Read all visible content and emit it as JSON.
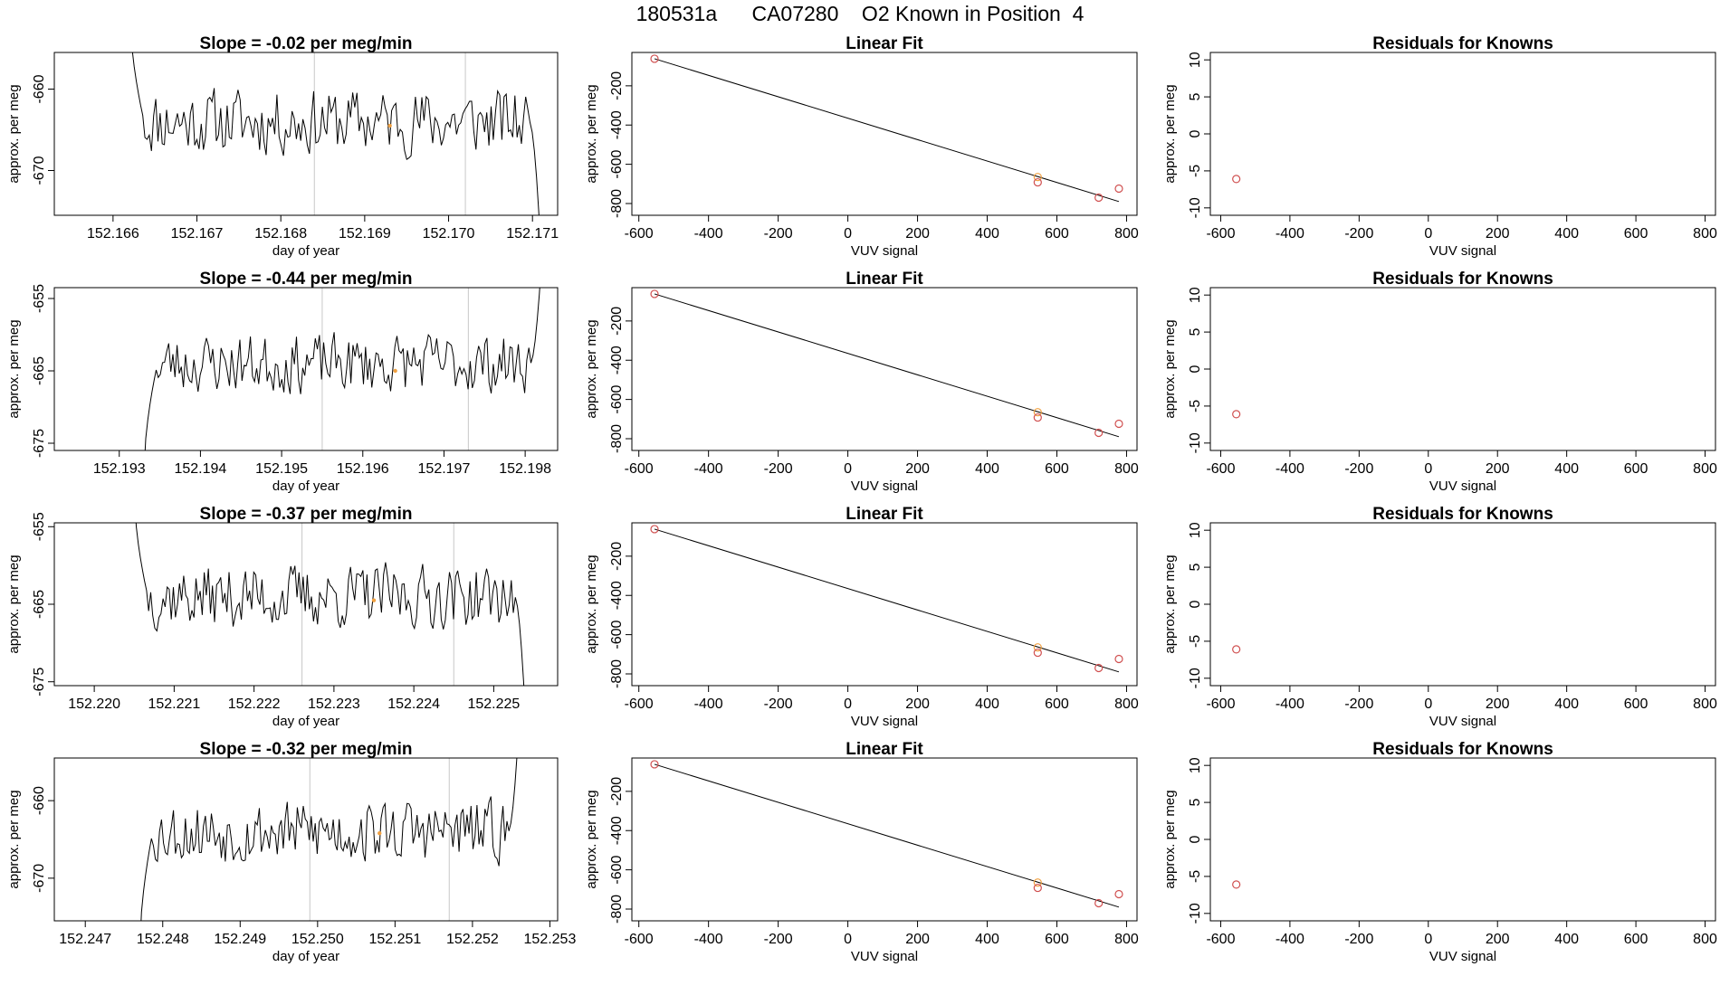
{
  "header": {
    "title": "180531a      CA07280    O2 Known in Position  4"
  },
  "chart_data": [
    {
      "type": "line",
      "title": "Slope =  -0.02  per meg/min",
      "xlabel": "day of year",
      "ylabel": "approx. per meg",
      "xlim": [
        152.1653,
        152.1713
      ],
      "ylim": [
        -675.5,
        -655.5
      ],
      "xticks": [
        152.166,
        152.167,
        152.168,
        152.169,
        152.17,
        152.171
      ],
      "xtick_labels": [
        "152.166",
        "152.167",
        "152.168",
        "152.169",
        "152.170",
        "152.171"
      ],
      "yticks": [
        -660,
        -670
      ],
      "ytick_labels": [
        "-660",
        "-670"
      ],
      "vlines": [
        152.1684,
        152.1702
      ],
      "marker": {
        "x": 152.1693,
        "y": -664.5
      },
      "start": 152.1662,
      "end": 152.1711,
      "base": -664,
      "seed": 11,
      "start_y": -650,
      "end_y": -680
    },
    {
      "type": "scatter",
      "title": "Linear Fit",
      "xlabel": "VUV signal",
      "ylabel": "approx. per meg",
      "xlim": [
        -620,
        830
      ],
      "ylim": [
        -860,
        -30
      ],
      "xticks": [
        -600,
        -400,
        -200,
        0,
        200,
        400,
        600,
        800
      ],
      "xtick_labels": [
        "-600",
        "-400",
        "-200",
        "0",
        "200",
        "400",
        "600",
        "800"
      ],
      "yticks": [
        -200,
        -400,
        -600,
        -800
      ],
      "ytick_labels": [
        "-200",
        "-400",
        "-600",
        "-800"
      ],
      "points": [
        [
          -555,
          -62
        ],
        [
          545,
          -665
        ],
        [
          545,
          -692
        ],
        [
          720,
          -770
        ],
        [
          778,
          -724
        ]
      ],
      "point_colors": [
        "#d05050",
        "#f0a040",
        "#d05050",
        "#d05050",
        "#d05050"
      ],
      "fit": [
        [
          -555,
          -62
        ],
        [
          778,
          -790
        ]
      ]
    },
    {
      "type": "scatter",
      "title": "Residuals for Knowns",
      "xlabel": "VUV signal",
      "ylabel": "approx. per meg",
      "xlim": [
        -630,
        830
      ],
      "ylim": [
        -11,
        11
      ],
      "xticks": [
        -600,
        -400,
        -200,
        0,
        200,
        400,
        600,
        800
      ],
      "xtick_labels": [
        "-600",
        "-400",
        "-200",
        "0",
        "200",
        "400",
        "600",
        "800"
      ],
      "yticks": [
        10,
        5,
        0,
        -5,
        -10
      ],
      "ytick_labels": [
        "10",
        "5",
        "0",
        "-5",
        "-10"
      ],
      "points": [
        [
          -555,
          -6.1
        ]
      ],
      "point_colors": [
        "#d05050"
      ]
    },
    {
      "type": "line",
      "title": "Slope =  -0.44  per meg/min",
      "xlabel": "day of year",
      "ylabel": "approx. per meg",
      "xlim": [
        152.1922,
        152.1984
      ],
      "ylim": [
        -676,
        -653.5
      ],
      "xticks": [
        152.193,
        152.194,
        152.195,
        152.196,
        152.197,
        152.198
      ],
      "xtick_labels": [
        "152.193",
        "152.194",
        "152.195",
        "152.196",
        "152.197",
        "152.198"
      ],
      "yticks": [
        -655,
        -665,
        -675
      ],
      "ytick_labels": [
        "-655",
        "-665",
        "-675"
      ],
      "vlines": [
        152.1955,
        152.1973
      ],
      "marker": {
        "x": 152.1964,
        "y": -665
      },
      "start": 152.1933,
      "end": 152.1982,
      "base": -664,
      "seed": 23,
      "start_y": -680,
      "end_y": -650
    },
    {
      "type": "scatter",
      "title": "Linear Fit",
      "xlabel": "VUV signal",
      "ylabel": "approx. per meg",
      "xlim": [
        -620,
        830
      ],
      "ylim": [
        -860,
        -30
      ],
      "xticks": [
        -600,
        -400,
        -200,
        0,
        200,
        400,
        600,
        800
      ],
      "xtick_labels": [
        "-600",
        "-400",
        "-200",
        "0",
        "200",
        "400",
        "600",
        "800"
      ],
      "yticks": [
        -200,
        -400,
        -600,
        -800
      ],
      "ytick_labels": [
        "-200",
        "-400",
        "-600",
        "-800"
      ],
      "points": [
        [
          -555,
          -62
        ],
        [
          545,
          -665
        ],
        [
          545,
          -692
        ],
        [
          720,
          -770
        ],
        [
          778,
          -724
        ]
      ],
      "point_colors": [
        "#d05050",
        "#f0a040",
        "#d05050",
        "#d05050",
        "#d05050"
      ],
      "fit": [
        [
          -555,
          -62
        ],
        [
          778,
          -790
        ]
      ]
    },
    {
      "type": "scatter",
      "title": "Residuals for Knowns",
      "xlabel": "VUV signal",
      "ylabel": "approx. per meg",
      "xlim": [
        -630,
        830
      ],
      "ylim": [
        -11,
        11
      ],
      "xticks": [
        -600,
        -400,
        -200,
        0,
        200,
        400,
        600,
        800
      ],
      "xtick_labels": [
        "-600",
        "-400",
        "-200",
        "0",
        "200",
        "400",
        "600",
        "800"
      ],
      "yticks": [
        10,
        5,
        0,
        -5,
        -10
      ],
      "ytick_labels": [
        "10",
        "5",
        "0",
        "-5",
        "-10"
      ],
      "points": [
        [
          -555,
          -6.1
        ]
      ],
      "point_colors": [
        "#d05050"
      ]
    },
    {
      "type": "line",
      "title": "Slope =  -0.37  per meg/min",
      "xlabel": "day of year",
      "ylabel": "approx. per meg",
      "xlim": [
        152.2195,
        152.2258
      ],
      "ylim": [
        -675.5,
        -654.5
      ],
      "xticks": [
        152.22,
        152.221,
        152.222,
        152.223,
        152.224,
        152.225
      ],
      "xtick_labels": [
        "152.220",
        "152.221",
        "152.222",
        "152.223",
        "152.224",
        "152.225"
      ],
      "yticks": [
        -655,
        -665,
        -675
      ],
      "ytick_labels": [
        "-655",
        "-665",
        "-675"
      ],
      "vlines": [
        152.2226,
        152.2245
      ],
      "marker": {
        "x": 152.2235,
        "y": -664.5
      },
      "start": 152.2205,
      "end": 152.2254,
      "base": -664,
      "seed": 37,
      "start_y": -650,
      "end_y": -680
    },
    {
      "type": "scatter",
      "title": "Linear Fit",
      "xlabel": "VUV signal",
      "ylabel": "approx. per meg",
      "xlim": [
        -620,
        830
      ],
      "ylim": [
        -860,
        -30
      ],
      "xticks": [
        -600,
        -400,
        -200,
        0,
        200,
        400,
        600,
        800
      ],
      "xtick_labels": [
        "-600",
        "-400",
        "-200",
        "0",
        "200",
        "400",
        "600",
        "800"
      ],
      "yticks": [
        -200,
        -400,
        -600,
        -800
      ],
      "ytick_labels": [
        "-200",
        "-400",
        "-600",
        "-800"
      ],
      "points": [
        [
          -555,
          -62
        ],
        [
          545,
          -665
        ],
        [
          545,
          -692
        ],
        [
          720,
          -770
        ],
        [
          778,
          -724
        ]
      ],
      "point_colors": [
        "#d05050",
        "#f0a040",
        "#d05050",
        "#d05050",
        "#d05050"
      ],
      "fit": [
        [
          -555,
          -62
        ],
        [
          778,
          -790
        ]
      ]
    },
    {
      "type": "scatter",
      "title": "Residuals for Knowns",
      "xlabel": "VUV signal",
      "ylabel": "approx. per meg",
      "xlim": [
        -630,
        830
      ],
      "ylim": [
        -11,
        11
      ],
      "xticks": [
        -600,
        -400,
        -200,
        0,
        200,
        400,
        600,
        800
      ],
      "xtick_labels": [
        "-600",
        "-400",
        "-200",
        "0",
        "200",
        "400",
        "600",
        "800"
      ],
      "yticks": [
        10,
        5,
        0,
        -5,
        -10
      ],
      "ytick_labels": [
        "10",
        "5",
        "0",
        "-5",
        "-10"
      ],
      "points": [
        [
          -555,
          -6.1
        ]
      ],
      "point_colors": [
        "#d05050"
      ]
    },
    {
      "type": "line",
      "title": "Slope =  -0.32  per meg/min",
      "xlabel": "day of year",
      "ylabel": "approx. per meg",
      "xlim": [
        152.2466,
        152.2531
      ],
      "ylim": [
        -675.5,
        -654.5
      ],
      "xticks": [
        152.247,
        152.248,
        152.249,
        152.25,
        152.251,
        152.252,
        152.253
      ],
      "xtick_labels": [
        "152.247",
        "152.248",
        "152.249",
        "152.250",
        "152.251",
        "152.252",
        "152.253"
      ],
      "yticks": [
        -660,
        -670
      ],
      "ytick_labels": [
        "-660",
        "-670"
      ],
      "vlines": [
        152.2499,
        152.2517
      ],
      "marker": {
        "x": 152.2508,
        "y": -664.2
      },
      "start": 152.2477,
      "end": 152.2526,
      "base": -664,
      "seed": 53,
      "start_y": -680,
      "end_y": -650
    },
    {
      "type": "scatter",
      "title": "Linear Fit",
      "xlabel": "VUV signal",
      "ylabel": "approx. per meg",
      "xlim": [
        -620,
        830
      ],
      "ylim": [
        -860,
        -30
      ],
      "xticks": [
        -600,
        -400,
        -200,
        0,
        200,
        400,
        600,
        800
      ],
      "xtick_labels": [
        "-600",
        "-400",
        "-200",
        "0",
        "200",
        "400",
        "600",
        "800"
      ],
      "yticks": [
        -200,
        -400,
        -600,
        -800
      ],
      "ytick_labels": [
        "-200",
        "-400",
        "-600",
        "-800"
      ],
      "points": [
        [
          -555,
          -62
        ],
        [
          545,
          -665
        ],
        [
          545,
          -692
        ],
        [
          720,
          -770
        ],
        [
          778,
          -724
        ]
      ],
      "point_colors": [
        "#d05050",
        "#f0a040",
        "#d05050",
        "#d05050",
        "#d05050"
      ],
      "fit": [
        [
          -555,
          -62
        ],
        [
          778,
          -790
        ]
      ]
    },
    {
      "type": "scatter",
      "title": "Residuals for Knowns",
      "xlabel": "VUV signal",
      "ylabel": "approx. per meg",
      "xlim": [
        -630,
        830
      ],
      "ylim": [
        -11,
        11
      ],
      "xticks": [
        -600,
        -400,
        -200,
        0,
        200,
        400,
        600,
        800
      ],
      "xtick_labels": [
        "-600",
        "-400",
        "-200",
        "0",
        "200",
        "400",
        "600",
        "800"
      ],
      "yticks": [
        10,
        5,
        0,
        -5,
        -10
      ],
      "ytick_labels": [
        "10",
        "5",
        "0",
        "-5",
        "-10"
      ],
      "points": [
        [
          -555,
          -6.1
        ]
      ],
      "point_colors": [
        "#d05050"
      ]
    }
  ]
}
